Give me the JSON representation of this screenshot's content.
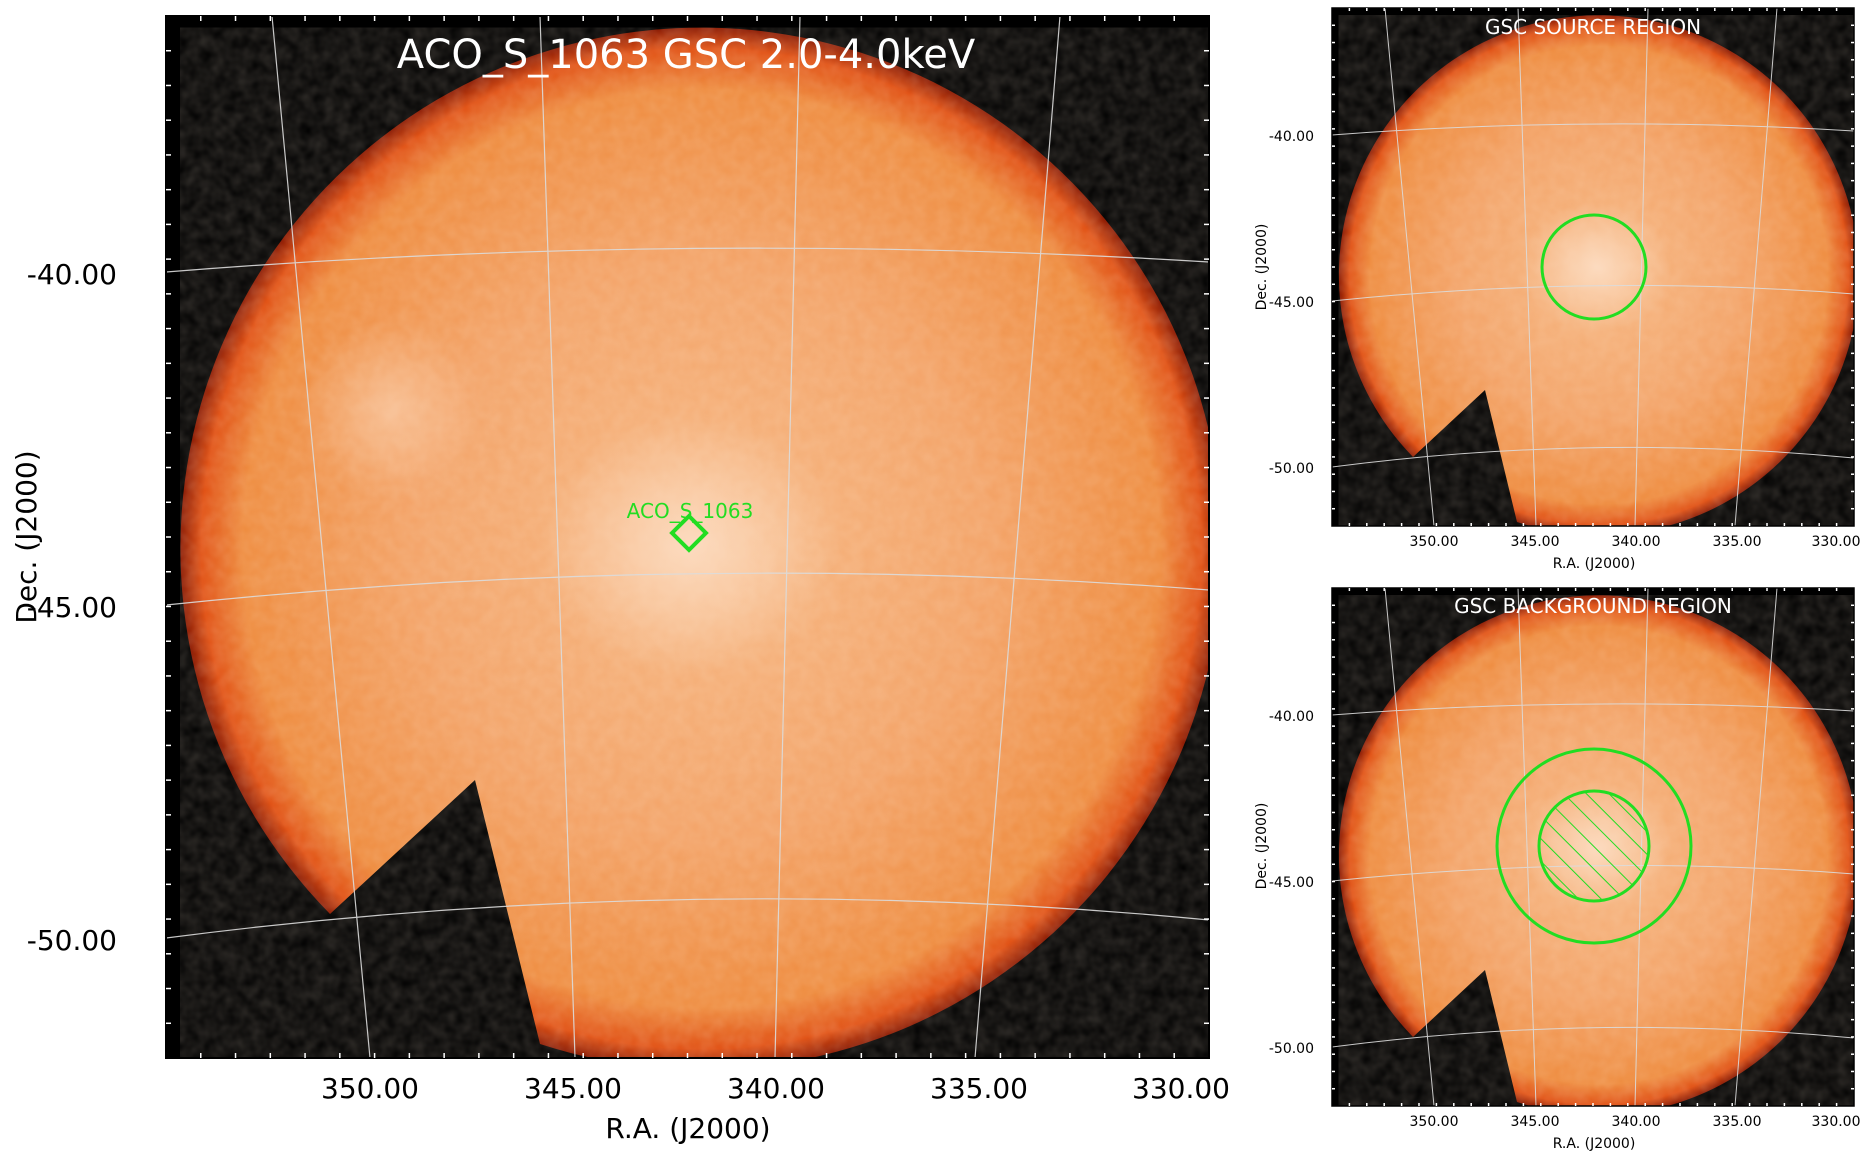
{
  "chart_data": [
    {
      "type": "heatmap",
      "panel": "main",
      "title": "ACO_S_1063 GSC 2.0-4.0keV",
      "xlabel": "R.A. (J2000)",
      "ylabel": "Dec. (J2000)",
      "x_ticks": [
        "350.00",
        "345.00",
        "340.00",
        "335.00",
        "330.00"
      ],
      "y_ticks": [
        "-40.00",
        "-45.00",
        "-50.00"
      ],
      "xlim": [
        355.0,
        329.5
      ],
      "ylim": [
        -52.0,
        -36.0
      ],
      "grid": true,
      "colormap": "orange",
      "marker": {
        "label": "ACO_S_1063",
        "shape": "diamond",
        "ra": 342.1,
        "dec": -44.0,
        "color": "#22dd22"
      }
    },
    {
      "type": "heatmap",
      "panel": "source",
      "title": "GSC SOURCE REGION",
      "xlabel": "R.A. (J2000)",
      "ylabel": "Dec. (J2000)",
      "x_ticks": [
        "350.00",
        "345.00",
        "340.00",
        "335.00",
        "330.00"
      ],
      "y_ticks": [
        "-40.00",
        "-45.00",
        "-50.00"
      ],
      "grid": true,
      "region": {
        "shape": "circle",
        "ra": 342.1,
        "dec": -43.9,
        "color": "#22dd22"
      }
    },
    {
      "type": "heatmap",
      "panel": "background",
      "title": "GSC BACKGROUND REGION",
      "xlabel": "R.A. (J2000)",
      "ylabel": "Dec. (J2000)",
      "x_ticks": [
        "350.00",
        "345.00",
        "340.00",
        "335.00",
        "330.00"
      ],
      "y_ticks": [
        "-40.00",
        "-45.00",
        "-50.00"
      ],
      "grid": true,
      "region": {
        "shape": "annulus",
        "ra": 342.1,
        "dec": -43.9,
        "excluded": "hatched inner circle",
        "color": "#22dd22"
      }
    }
  ]
}
